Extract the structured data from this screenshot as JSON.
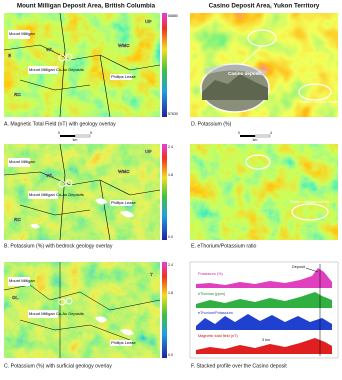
{
  "left_title": "Mount Milligan Deposit Area, British Columbia",
  "right_title": "Casino Deposit Area, Yukon Territory",
  "panel_a": {
    "caption": "A. Magnetic Total Field (nT) with geology overlay",
    "colorbar": [
      "58880",
      "57630"
    ],
    "labels": [
      "Mount Milligan",
      "Mount Milligan Cu-Au Deposits",
      "Phillips Lease",
      "WMC",
      "WL",
      "UP",
      "RC",
      "E"
    ]
  },
  "panel_b": {
    "caption": "B. Potassium (%) with bedrock geology overlay",
    "colorbar": [
      "2.4",
      "1.8",
      "0.0"
    ],
    "scale": [
      "0",
      "km",
      "5"
    ],
    "labels": [
      "Mount Milligan",
      "Mount Milligan Cu-Au Deposits",
      "Phillips Lease",
      "WMC",
      "WL",
      "UP",
      "RC"
    ]
  },
  "panel_c": {
    "caption": "C. Potassium (%) with surficial geology overlay",
    "colorbar": [
      "2.4",
      "1.8",
      "0.0"
    ],
    "labels": [
      "Mount Milligan",
      "Mount Milligan Cu-Au Deposits",
      "Phillips Lease",
      "GL",
      "T"
    ]
  },
  "panel_d": {
    "caption": "D. Potassium (%)",
    "labels": [
      "Casino deposit",
      "Patton volcanic centre"
    ]
  },
  "panel_e": {
    "caption": "E. eThorium/Potassium ratio",
    "scale": [
      "0",
      "km",
      "4"
    ],
    "labels": [
      "Patton volcanic centre"
    ]
  },
  "panel_f": {
    "caption": "F. Stacked profile over the Casino deposit",
    "marker": "Deposit",
    "profiles": [
      "Potassium (%)",
      "eThorium (ppm)",
      "eThorium/Potassium",
      "Magnetic total field (nT)"
    ],
    "distance": "3 km"
  }
}
